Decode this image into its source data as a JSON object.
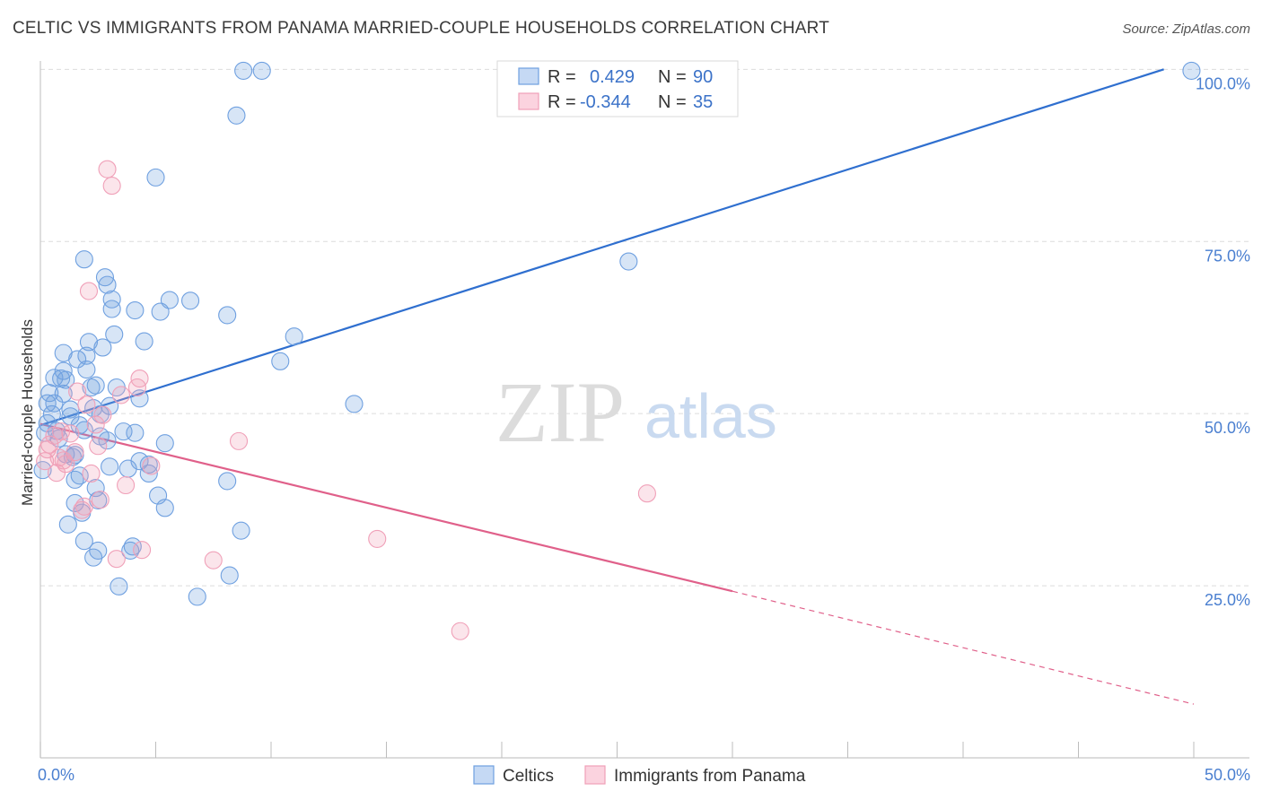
{
  "title": "CELTIC VS IMMIGRANTS FROM PANAMA MARRIED-COUPLE HOUSEHOLDS CORRELATION CHART",
  "source": "Source: ZipAtlas.com",
  "watermark": {
    "zip": "ZIP",
    "atlas": "atlas"
  },
  "legend": {
    "r_label": "R =",
    "n_label": "N =",
    "rows": [
      {
        "name": "Celtics",
        "r": "0.429",
        "n": "90",
        "color": "#6fa0e0"
      },
      {
        "name": "Immigrants from Panama",
        "r": "-0.344",
        "n": "35",
        "color": "#f0a0b8"
      }
    ]
  },
  "bottom_legend": [
    "Celtics",
    "Immigrants from Panama"
  ],
  "chart_data": {
    "type": "scatter",
    "title": "CELTIC VS IMMIGRANTS FROM PANAMA MARRIED-COUPLE HOUSEHOLDS CORRELATION CHART",
    "xlabel": "",
    "ylabel": "Married-couple Households",
    "xlim": [
      0,
      50
    ],
    "ylim": [
      0,
      102
    ],
    "x_tick_labels": [
      "0.0%",
      "50.0%"
    ],
    "y_ticks": [
      25,
      50,
      75,
      100
    ],
    "y_tick_labels": [
      "25.0%",
      "50.0%",
      "75.0%",
      "100.0%"
    ],
    "grid": true,
    "series": [
      {
        "name": "Celtics",
        "color": "#6fa0e0",
        "trend": {
          "x": [
            0,
            48.7
          ],
          "y": [
            48.3,
            100
          ],
          "dashed_to": null,
          "color": "#2f6fcf"
        },
        "points": [
          [
            0.1,
            41.8
          ],
          [
            0.2,
            47.2
          ],
          [
            0.3,
            48.6
          ],
          [
            0.3,
            51.5
          ],
          [
            0.4,
            53
          ],
          [
            0.5,
            49.9
          ],
          [
            0.6,
            51.5
          ],
          [
            0.6,
            55.2
          ],
          [
            0.7,
            47.5
          ],
          [
            0.8,
            46.4
          ],
          [
            0.9,
            55.1
          ],
          [
            1.0,
            56.2
          ],
          [
            1.0,
            58.8
          ],
          [
            1.0,
            52.9
          ],
          [
            1.1,
            54.9
          ],
          [
            1.1,
            44.1
          ],
          [
            1.2,
            33.9
          ],
          [
            1.3,
            50.6
          ],
          [
            1.3,
            49.6
          ],
          [
            1.4,
            43.7
          ],
          [
            1.5,
            40.4
          ],
          [
            1.5,
            44.0
          ],
          [
            1.5,
            37.0
          ],
          [
            1.6,
            57.9
          ],
          [
            1.7,
            48.3
          ],
          [
            1.7,
            41.0
          ],
          [
            1.8,
            35.6
          ],
          [
            1.9,
            31.5
          ],
          [
            1.9,
            47.6
          ],
          [
            1.9,
            72.4
          ],
          [
            2.0,
            56.4
          ],
          [
            2.0,
            58.4
          ],
          [
            2.1,
            60.4
          ],
          [
            2.2,
            53.8
          ],
          [
            2.3,
            29.1
          ],
          [
            2.3,
            50.8
          ],
          [
            2.4,
            54.1
          ],
          [
            2.4,
            39.2
          ],
          [
            2.5,
            30.1
          ],
          [
            2.5,
            37.4
          ],
          [
            2.6,
            46.7
          ],
          [
            2.6,
            49.9
          ],
          [
            2.7,
            59.6
          ],
          [
            2.8,
            69.8
          ],
          [
            2.9,
            46.1
          ],
          [
            2.9,
            68.7
          ],
          [
            3.0,
            51.1
          ],
          [
            3.0,
            42.3
          ],
          [
            3.1,
            65.2
          ],
          [
            3.1,
            66.6
          ],
          [
            3.2,
            61.5
          ],
          [
            3.3,
            53.8
          ],
          [
            3.4,
            24.9
          ],
          [
            3.6,
            47.4
          ],
          [
            3.8,
            42.0
          ],
          [
            3.9,
            30.1
          ],
          [
            4.0,
            30.7
          ],
          [
            4.1,
            65.0
          ],
          [
            4.1,
            47.2
          ],
          [
            4.3,
            52.2
          ],
          [
            4.3,
            43.1
          ],
          [
            4.5,
            60.5
          ],
          [
            4.7,
            42.6
          ],
          [
            4.7,
            41.3
          ],
          [
            5.0,
            84.3
          ],
          [
            5.1,
            38.1
          ],
          [
            5.2,
            64.8
          ],
          [
            5.4,
            45.7
          ],
          [
            5.4,
            36.3
          ],
          [
            5.6,
            66.5
          ],
          [
            6.5,
            66.4
          ],
          [
            6.8,
            23.4
          ],
          [
            8.1,
            64.3
          ],
          [
            8.1,
            40.2
          ],
          [
            8.2,
            26.5
          ],
          [
            8.5,
            93.3
          ],
          [
            8.7,
            33.0
          ],
          [
            8.8,
            99.8
          ],
          [
            9.6,
            99.8
          ],
          [
            10.4,
            57.6
          ],
          [
            11.0,
            61.2
          ],
          [
            13.6,
            51.4
          ],
          [
            25.5,
            72.1
          ],
          [
            49.9,
            99.8
          ]
        ]
      },
      {
        "name": "Immigrants from Panama",
        "color": "#f0a0b8",
        "trend": {
          "x": [
            0,
            30
          ],
          "y": [
            48.5,
            24.2
          ],
          "dashed_to": [
            50,
            7.8
          ],
          "color": "#e0608a"
        },
        "points": [
          [
            0.2,
            43.1
          ],
          [
            0.3,
            44.8
          ],
          [
            0.4,
            45.5
          ],
          [
            0.6,
            46.8
          ],
          [
            0.7,
            41.4
          ],
          [
            0.8,
            43.6
          ],
          [
            0.9,
            47.4
          ],
          [
            1.0,
            43.2
          ],
          [
            1.1,
            42.7
          ],
          [
            1.3,
            47.1
          ],
          [
            1.5,
            44.4
          ],
          [
            1.6,
            53.2
          ],
          [
            1.8,
            36.0
          ],
          [
            1.9,
            36.5
          ],
          [
            2.0,
            51.3
          ],
          [
            2.1,
            67.8
          ],
          [
            2.2,
            41.3
          ],
          [
            2.4,
            48.4
          ],
          [
            2.5,
            45.3
          ],
          [
            2.6,
            37.5
          ],
          [
            2.7,
            49.8
          ],
          [
            2.9,
            85.5
          ],
          [
            3.1,
            83.1
          ],
          [
            3.3,
            28.9
          ],
          [
            3.5,
            52.7
          ],
          [
            3.7,
            39.6
          ],
          [
            4.2,
            53.8
          ],
          [
            4.3,
            55.1
          ],
          [
            4.4,
            30.2
          ],
          [
            4.8,
            42.4
          ],
          [
            7.5,
            28.7
          ],
          [
            8.6,
            46.0
          ],
          [
            14.6,
            31.8
          ],
          [
            18.2,
            18.4
          ],
          [
            26.3,
            38.4
          ]
        ]
      }
    ]
  }
}
